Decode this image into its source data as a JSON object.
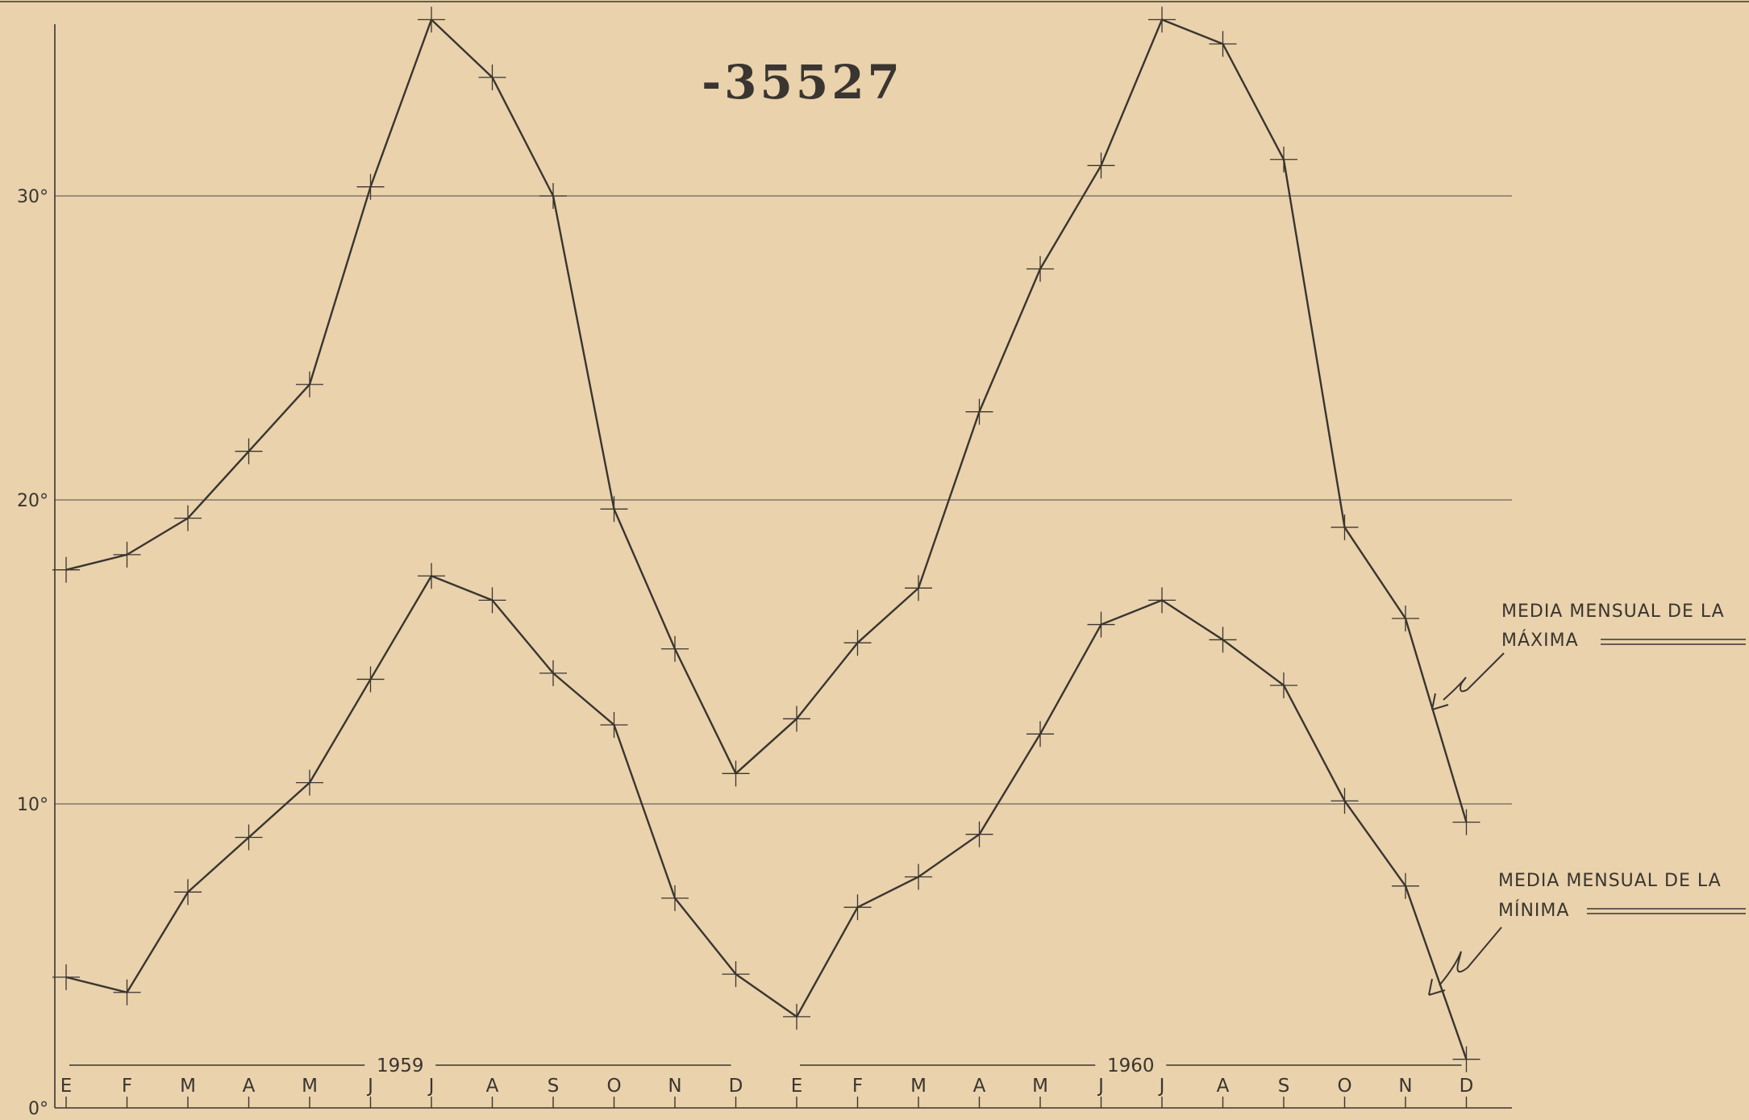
{
  "stamp_number": "-35527",
  "colors": {
    "background": "#e9d2ac",
    "ink": "#3a3530",
    "gridline": "#6f675d"
  },
  "chart_data": {
    "type": "line",
    "title": "",
    "xlabel": "",
    "ylabel": "",
    "categories": [
      "E",
      "F",
      "M",
      "A",
      "M",
      "J",
      "J",
      "A",
      "S",
      "O",
      "N",
      "D",
      "E",
      "F",
      "M",
      "A",
      "M",
      "J",
      "J",
      "A",
      "S",
      "O",
      "N",
      "D"
    ],
    "year_labels": [
      "1959",
      "1960"
    ],
    "ylim": [
      0,
      36
    ],
    "y_tick_labels": [
      "0°",
      "10°",
      "20°",
      "30°"
    ],
    "y_tick_values": [
      0,
      10,
      20,
      30
    ],
    "grid": true,
    "series": [
      {
        "name": "MEDIA MENSUAL DE LA MÁXIMA",
        "label_lines": [
          "MEDIA MENSUAL DE LA",
          "MÁXIMA"
        ],
        "values": [
          17.7,
          18.2,
          19.4,
          21.6,
          23.8,
          30.3,
          35.8,
          33.9,
          30.0,
          19.7,
          15.1,
          11.0,
          12.8,
          15.3,
          17.1,
          22.9,
          27.6,
          31.0,
          35.8,
          35.0,
          31.2,
          19.1,
          16.1,
          9.4
        ]
      },
      {
        "name": "MEDIA MENSUAL DE LA MÍNIMA",
        "label_lines": [
          "MEDIA MENSUAL DE LA",
          "MÍNIMA"
        ],
        "values": [
          4.3,
          3.8,
          7.1,
          8.9,
          10.7,
          14.1,
          17.5,
          16.7,
          14.3,
          12.6,
          6.9,
          4.4,
          3.0,
          6.6,
          7.6,
          9.0,
          12.3,
          15.9,
          16.7,
          15.4,
          13.9,
          10.1,
          7.3,
          1.6
        ]
      }
    ]
  }
}
